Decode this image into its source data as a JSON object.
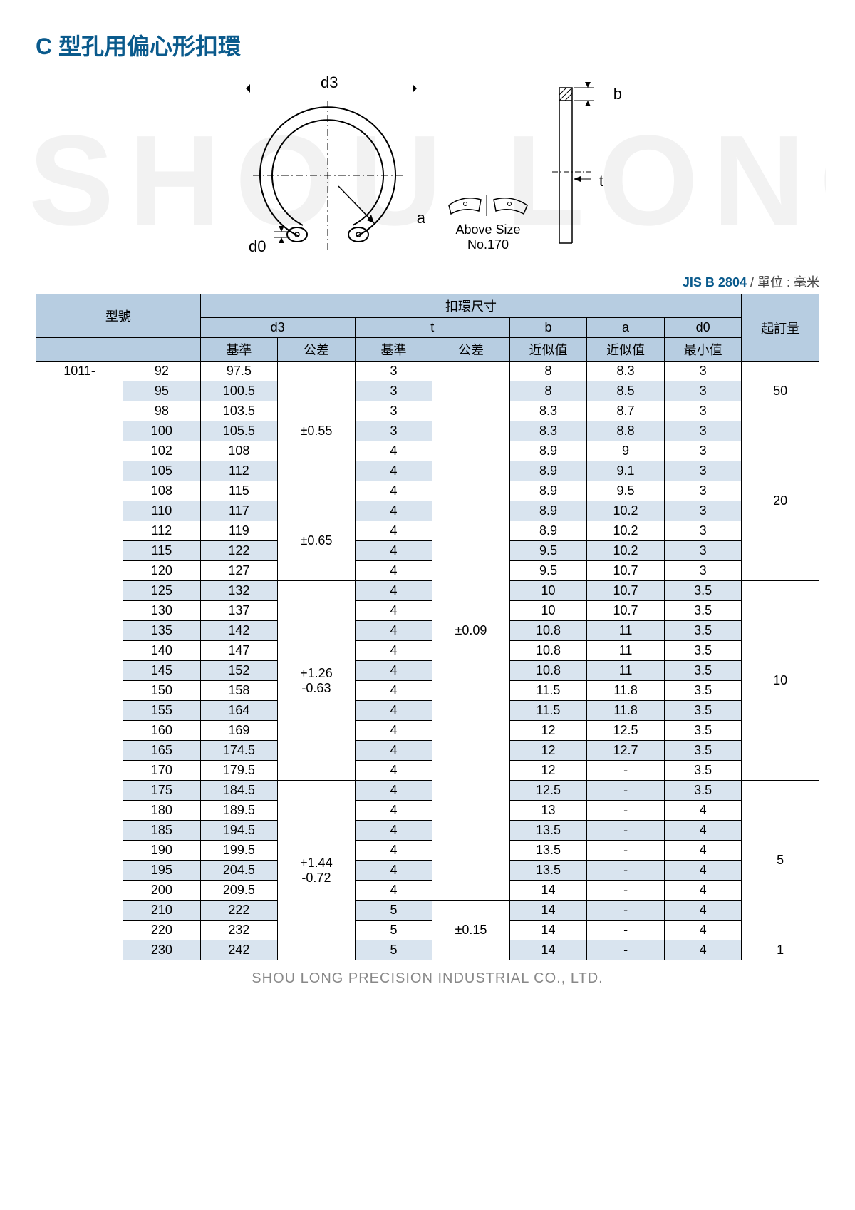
{
  "title": "C 型孔用偏心形扣環",
  "watermark": "SHOU LONG",
  "diagram": {
    "d3": "d3",
    "a": "a",
    "d0": "d0",
    "b": "b",
    "t": "t",
    "above170_line1": "Above Size",
    "above170_line2": "No.170"
  },
  "standard": "JIS B 2804",
  "unit_label": "/ 單位 : 毫米",
  "headers": {
    "model": "型號",
    "ring_dim": "扣環尺寸",
    "moq": "起訂量",
    "d3": "d3",
    "t": "t",
    "b": "b",
    "a": "a",
    "d0": "d0",
    "base": "基準",
    "tol": "公差",
    "approx": "近似值",
    "min": "最小值"
  },
  "model_prefix": "1011-",
  "tol_groups_d3": [
    {
      "label": "±0.55",
      "span": 7
    },
    {
      "label": "±0.65",
      "span": 4
    },
    {
      "label": "+1.26\n-0.63",
      "span": 10
    },
    {
      "label": "+1.44\n-0.72",
      "span": 9
    }
  ],
  "tol_groups_t": [
    {
      "label": "±0.09",
      "span": 27
    },
    {
      "label": "±0.15",
      "span": 3
    }
  ],
  "moq_groups": [
    {
      "label": "50",
      "span": 3
    },
    {
      "label": "20",
      "span": 8
    },
    {
      "label": "10",
      "span": 10
    },
    {
      "label": "5",
      "span": 8
    },
    {
      "label": "1",
      "span": 1
    }
  ],
  "rows": [
    {
      "m": "92",
      "d3": "97.5",
      "t": "3",
      "b": "8",
      "a": "8.3",
      "d0": "3",
      "shade": false
    },
    {
      "m": "95",
      "d3": "100.5",
      "t": "3",
      "b": "8",
      "a": "8.5",
      "d0": "3",
      "shade": true
    },
    {
      "m": "98",
      "d3": "103.5",
      "t": "3",
      "b": "8.3",
      "a": "8.7",
      "d0": "3",
      "shade": false
    },
    {
      "m": "100",
      "d3": "105.5",
      "t": "3",
      "b": "8.3",
      "a": "8.8",
      "d0": "3",
      "shade": true
    },
    {
      "m": "102",
      "d3": "108",
      "t": "4",
      "b": "8.9",
      "a": "9",
      "d0": "3",
      "shade": false
    },
    {
      "m": "105",
      "d3": "112",
      "t": "4",
      "b": "8.9",
      "a": "9.1",
      "d0": "3",
      "shade": true
    },
    {
      "m": "108",
      "d3": "115",
      "t": "4",
      "b": "8.9",
      "a": "9.5",
      "d0": "3",
      "shade": false
    },
    {
      "m": "110",
      "d3": "117",
      "t": "4",
      "b": "8.9",
      "a": "10.2",
      "d0": "3",
      "shade": true
    },
    {
      "m": "112",
      "d3": "119",
      "t": "4",
      "b": "8.9",
      "a": "10.2",
      "d0": "3",
      "shade": false
    },
    {
      "m": "115",
      "d3": "122",
      "t": "4",
      "b": "9.5",
      "a": "10.2",
      "d0": "3",
      "shade": true
    },
    {
      "m": "120",
      "d3": "127",
      "t": "4",
      "b": "9.5",
      "a": "10.7",
      "d0": "3",
      "shade": false
    },
    {
      "m": "125",
      "d3": "132",
      "t": "4",
      "b": "10",
      "a": "10.7",
      "d0": "3.5",
      "shade": true
    },
    {
      "m": "130",
      "d3": "137",
      "t": "4",
      "b": "10",
      "a": "10.7",
      "d0": "3.5",
      "shade": false
    },
    {
      "m": "135",
      "d3": "142",
      "t": "4",
      "b": "10.8",
      "a": "11",
      "d0": "3.5",
      "shade": true
    },
    {
      "m": "140",
      "d3": "147",
      "t": "4",
      "b": "10.8",
      "a": "11",
      "d0": "3.5",
      "shade": false
    },
    {
      "m": "145",
      "d3": "152",
      "t": "4",
      "b": "10.8",
      "a": "11",
      "d0": "3.5",
      "shade": true
    },
    {
      "m": "150",
      "d3": "158",
      "t": "4",
      "b": "11.5",
      "a": "11.8",
      "d0": "3.5",
      "shade": false
    },
    {
      "m": "155",
      "d3": "164",
      "t": "4",
      "b": "11.5",
      "a": "11.8",
      "d0": "3.5",
      "shade": true
    },
    {
      "m": "160",
      "d3": "169",
      "t": "4",
      "b": "12",
      "a": "12.5",
      "d0": "3.5",
      "shade": false
    },
    {
      "m": "165",
      "d3": "174.5",
      "t": "4",
      "b": "12",
      "a": "12.7",
      "d0": "3.5",
      "shade": true
    },
    {
      "m": "170",
      "d3": "179.5",
      "t": "4",
      "b": "12",
      "a": "-",
      "d0": "3.5",
      "shade": false
    },
    {
      "m": "175",
      "d3": "184.5",
      "t": "4",
      "b": "12.5",
      "a": "-",
      "d0": "3.5",
      "shade": true
    },
    {
      "m": "180",
      "d3": "189.5",
      "t": "4",
      "b": "13",
      "a": "-",
      "d0": "4",
      "shade": false
    },
    {
      "m": "185",
      "d3": "194.5",
      "t": "4",
      "b": "13.5",
      "a": "-",
      "d0": "4",
      "shade": true
    },
    {
      "m": "190",
      "d3": "199.5",
      "t": "4",
      "b": "13.5",
      "a": "-",
      "d0": "4",
      "shade": false
    },
    {
      "m": "195",
      "d3": "204.5",
      "t": "4",
      "b": "13.5",
      "a": "-",
      "d0": "4",
      "shade": true
    },
    {
      "m": "200",
      "d3": "209.5",
      "t": "4",
      "b": "14",
      "a": "-",
      "d0": "4",
      "shade": false
    },
    {
      "m": "210",
      "d3": "222",
      "t": "5",
      "b": "14",
      "a": "-",
      "d0": "4",
      "shade": true
    },
    {
      "m": "220",
      "d3": "232",
      "t": "5",
      "b": "14",
      "a": "-",
      "d0": "4",
      "shade": false
    },
    {
      "m": "230",
      "d3": "242",
      "t": "5",
      "b": "14",
      "a": "-",
      "d0": "4",
      "shade": true
    }
  ],
  "footer": "SHOU LONG PRECISION INDUSTRIAL CO., LTD.",
  "colors": {
    "title": "#0a5a8c",
    "header_bg": "#b7cde1",
    "shade_bg": "#d9e4ef",
    "border": "#000000",
    "footer": "#888888",
    "watermark": "#f2f2f2"
  }
}
